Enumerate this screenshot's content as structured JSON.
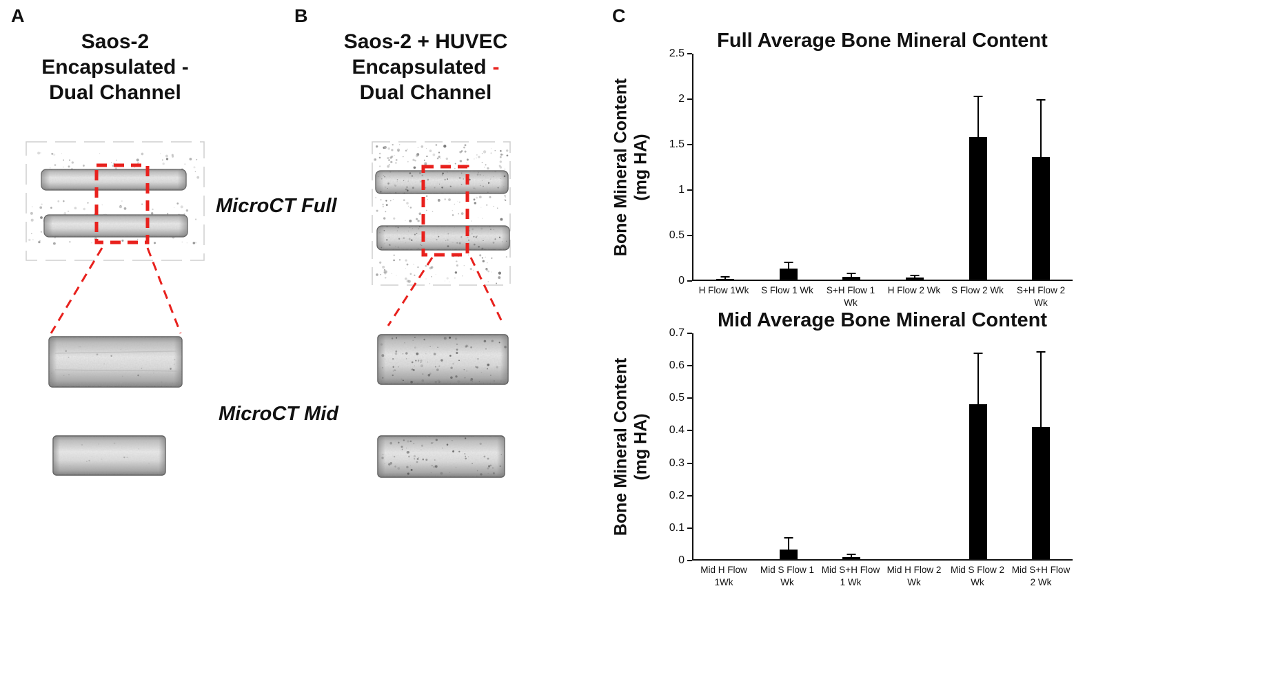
{
  "figure": {
    "background": "#ffffff",
    "accent_red": "#e8211d",
    "bar_black": "#000000",
    "panels": {
      "a": {
        "label": "A",
        "title_lines": [
          "Saos-2",
          "Encapsulated -",
          "Dual Channel"
        ]
      },
      "b": {
        "label": "B",
        "title_line1": "Saos-2 + HUVEC",
        "title_line2_text": "Encapsulated",
        "title_line2_dash": "-",
        "title_line3": "Dual Channel"
      },
      "c": {
        "label": "C"
      }
    },
    "row_labels": {
      "full": "MicroCT Full",
      "mid": "MicroCT Mid"
    }
  },
  "chart_data": [
    {
      "type": "bar",
      "title": "Full Average Bone Mineral Content",
      "ylabel_lines": [
        "Bone Mineral Content",
        "(mg HA)"
      ],
      "categories": [
        "H Flow 1Wk",
        "S Flow 1 Wk",
        "S+H Flow 1 Wk",
        "H Flow 2 Wk",
        "S Flow 2 Wk",
        "S+H Flow 2 Wk"
      ],
      "values": [
        0.01,
        0.12,
        0.03,
        0.02,
        1.58,
        1.36
      ],
      "errors": [
        0.01,
        0.06,
        0.03,
        0.02,
        0.44,
        0.62
      ],
      "ylim": [
        0,
        2.5
      ],
      "yticks": [
        0,
        0.5,
        1,
        1.5,
        2,
        2.5
      ],
      "bar_color": "#000000",
      "grid": false,
      "legend": null
    },
    {
      "type": "bar",
      "title": "Mid Average Bone Mineral Content",
      "ylabel_lines": [
        "Bone Mineral Content",
        "(mg HA)"
      ],
      "categories": [
        "Mid H Flow 1Wk",
        "Mid S Flow 1 Wk",
        "Mid S+H Flow 1 Wk",
        "Mid H Flow 2 Wk",
        "Mid S Flow 2 Wk",
        "Mid S+H Flow 2 Wk"
      ],
      "values": [
        0,
        0.03,
        0.006,
        0,
        0.48,
        0.41
      ],
      "errors": [
        0,
        0.035,
        0.006,
        0,
        0.155,
        0.23
      ],
      "ylim": [
        0,
        0.7
      ],
      "yticks": [
        0,
        0.1,
        0.2,
        0.3,
        0.4,
        0.5,
        0.6,
        0.7
      ],
      "bar_color": "#000000",
      "grid": false,
      "legend": null
    }
  ]
}
